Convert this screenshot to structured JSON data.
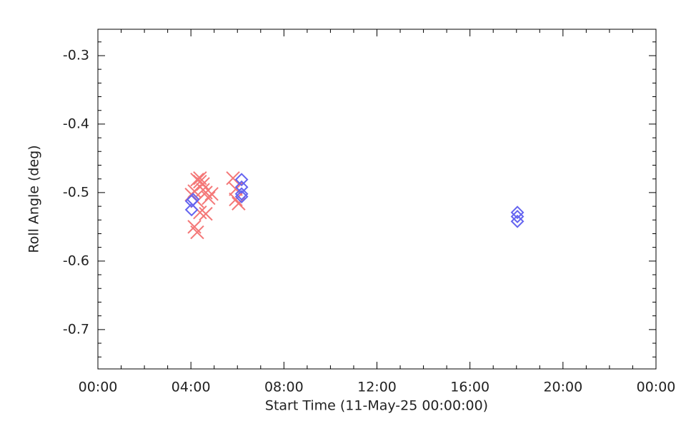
{
  "chart_data": {
    "type": "scatter",
    "xlabel": "Start Time (11-May-25 00:00:00)",
    "ylabel": "Roll Angle (deg)",
    "xlim": [
      0,
      24
    ],
    "ylim": [
      -0.7575,
      -0.2615
    ],
    "xticks": [
      {
        "value": 0,
        "label": "00:00"
      },
      {
        "value": 4,
        "label": "04:00"
      },
      {
        "value": 8,
        "label": "08:00"
      },
      {
        "value": 12,
        "label": "12:00"
      },
      {
        "value": 16,
        "label": "16:00"
      },
      {
        "value": 20,
        "label": "20:00"
      },
      {
        "value": 24,
        "label": "00:00"
      }
    ],
    "xminorticks": [
      1,
      2,
      3,
      5,
      6,
      7,
      9,
      10,
      11,
      13,
      14,
      15,
      17,
      18,
      19,
      21,
      22,
      23
    ],
    "yticks": [
      -0.7,
      -0.6,
      -0.5,
      -0.4,
      -0.3
    ],
    "yminorticks": [
      -0.74,
      -0.72,
      -0.68,
      -0.66,
      -0.64,
      -0.62,
      -0.58,
      -0.56,
      -0.54,
      -0.52,
      -0.48,
      -0.46,
      -0.44,
      -0.42,
      -0.38,
      -0.36,
      -0.34,
      -0.32,
      -0.28
    ],
    "series": [
      {
        "color": "#f47878",
        "marker": "x",
        "x": [
          4.03,
          4.15,
          4.27,
          4.39,
          4.52,
          4.64,
          4.76,
          4.27,
          4.39,
          4.64,
          4.15,
          4.27,
          4.39,
          4.52,
          4.89,
          5.81,
          5.93,
          6.05,
          5.93
        ],
        "values": [
          -0.503,
          -0.498,
          -0.481,
          -0.484,
          -0.4875,
          -0.5,
          -0.508,
          -0.5125,
          -0.529,
          -0.531,
          -0.55,
          -0.558,
          -0.479,
          -0.496,
          -0.502,
          -0.479,
          -0.51,
          -0.516,
          -0.495
        ]
      },
      {
        "color": "#6464f0",
        "marker": "diamond",
        "x": [
          4.03,
          4.09,
          4.03,
          6.18,
          6.18,
          6.18,
          6.18,
          18.04,
          18.04,
          18.04
        ],
        "values": [
          -0.5125,
          -0.51,
          -0.525,
          -0.481,
          -0.492,
          -0.502,
          -0.506,
          -0.529,
          -0.535,
          -0.542
        ]
      }
    ]
  }
}
